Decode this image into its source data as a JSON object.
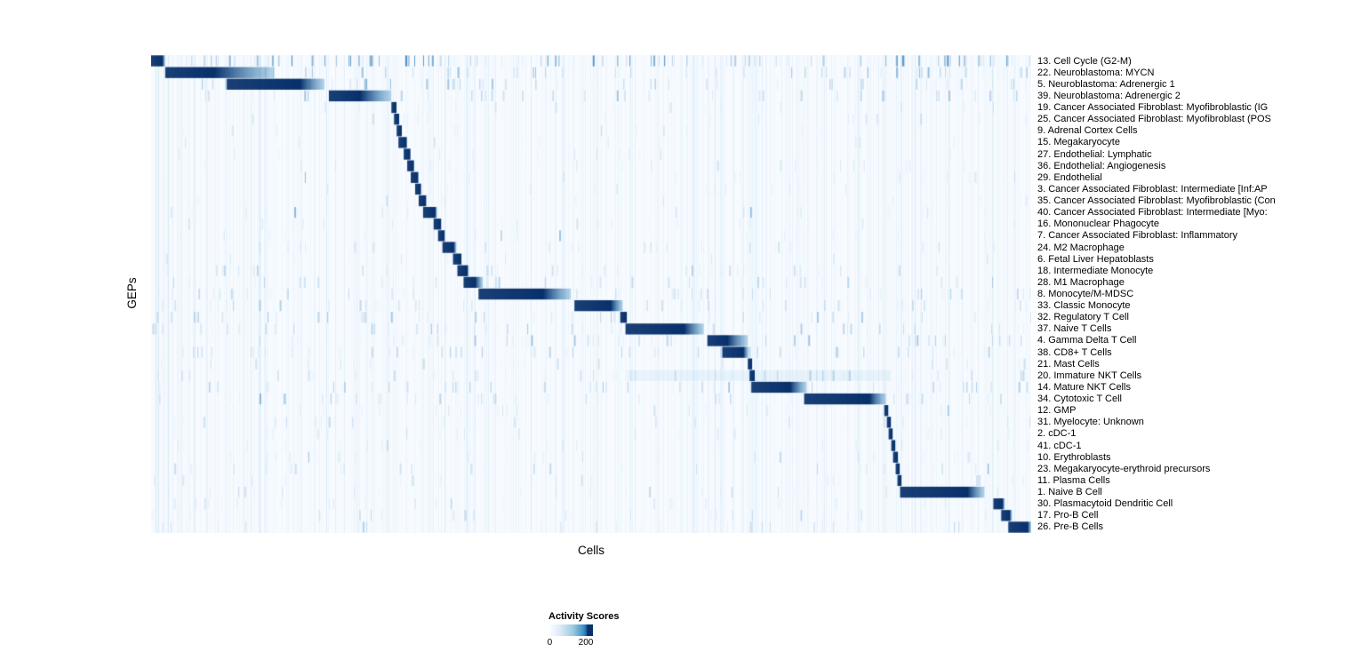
{
  "chart_data": {
    "type": "heatmap",
    "title": "",
    "xlabel": "Cells",
    "ylabel": "GEPs",
    "colormap": {
      "name": "Blues",
      "stops": [
        "#f7fbff",
        "#deebf7",
        "#9ecae1",
        "#4292c6",
        "#08306b"
      ],
      "low": "#f7fbff",
      "high": "#08306b"
    },
    "legend": {
      "title": "Activity Scores",
      "min": 0,
      "max": 200,
      "ticks": [
        "0",
        "200"
      ]
    },
    "notes": "Rows are GEPs, columns are cells ordered so each GEP's high-activity cells form a diagonal block. seg = [start,end] fraction of the x-axis covered by the dark high-activity block; fade = fraction of the block fading rightward; noise = relative density of scattered low-level activity.",
    "rows": [
      {
        "label": "13. Cell Cycle (G2-M)",
        "seg": [
          0.0,
          0.016
        ],
        "fade": 0.2,
        "noise": 0.55
      },
      {
        "label": "22. Neuroblastoma: MYCN",
        "seg": [
          0.016,
          0.14
        ],
        "fade": 0.55,
        "noise": 0.3
      },
      {
        "label": "5. Neuroblastoma: Adrenergic 1",
        "seg": [
          0.086,
          0.197
        ],
        "fade": 0.25,
        "noise": 0.3
      },
      {
        "label": "39. Neuroblastoma: Adrenergic 2",
        "seg": [
          0.202,
          0.273
        ],
        "fade": 0.5,
        "noise": 0.25
      },
      {
        "label": "19. Cancer Associated Fibroblast: Myofibroblastic (IG",
        "seg": [
          0.273,
          0.279
        ],
        "fade": 0.1,
        "noise": 0.1
      },
      {
        "label": "25. Cancer Associated Fibroblast: Myofibroblast (POS",
        "seg": [
          0.276,
          0.282
        ],
        "fade": 0.1,
        "noise": 0.1
      },
      {
        "label": "9. Adrenal Cortex Cells",
        "seg": [
          0.279,
          0.285
        ],
        "fade": 0.1,
        "noise": 0.1
      },
      {
        "label": "15. Megakaryocyte",
        "seg": [
          0.281,
          0.291
        ],
        "fade": 0.1,
        "noise": 0.1
      },
      {
        "label": "27. Endothelial: Lymphatic",
        "seg": [
          0.287,
          0.295
        ],
        "fade": 0.1,
        "noise": 0.1
      },
      {
        "label": "36. Endothelial: Angiogenesis",
        "seg": [
          0.291,
          0.299
        ],
        "fade": 0.1,
        "noise": 0.12
      },
      {
        "label": "29. Endothelial",
        "seg": [
          0.295,
          0.304
        ],
        "fade": 0.1,
        "noise": 0.1
      },
      {
        "label": "3. Cancer Associated Fibroblast: Intermediate [Inf:AP",
        "seg": [
          0.3,
          0.307
        ],
        "fade": 0.1,
        "noise": 0.1
      },
      {
        "label": "35. Cancer Associated Fibroblast: Myofibroblastic (Con",
        "seg": [
          0.304,
          0.313
        ],
        "fade": 0.1,
        "noise": 0.1
      },
      {
        "label": "40. Cancer Associated Fibroblast: Intermediate [Myo:",
        "seg": [
          0.309,
          0.325
        ],
        "fade": 0.15,
        "noise": 0.1
      },
      {
        "label": "16. Mononuclear Phagocyte",
        "seg": [
          0.321,
          0.33
        ],
        "fade": 0.1,
        "noise": 0.12
      },
      {
        "label": "7. Cancer Associated Fibroblast: Inflammatory",
        "seg": [
          0.326,
          0.334
        ],
        "fade": 0.1,
        "noise": 0.1
      },
      {
        "label": "24. M2 Macrophage",
        "seg": [
          0.331,
          0.347
        ],
        "fade": 0.2,
        "noise": 0.15
      },
      {
        "label": "6. Fetal Liver Hepatoblasts",
        "seg": [
          0.343,
          0.353
        ],
        "fade": 0.1,
        "noise": 0.1
      },
      {
        "label": "18. Intermediate Monocyte",
        "seg": [
          0.348,
          0.361
        ],
        "fade": 0.15,
        "noise": 0.18
      },
      {
        "label": "28. M1 Macrophage",
        "seg": [
          0.355,
          0.377
        ],
        "fade": 0.4,
        "noise": 0.2
      },
      {
        "label": "8. Monocyte/M-MDSC",
        "seg": [
          0.372,
          0.477
        ],
        "fade": 0.3,
        "noise": 0.25
      },
      {
        "label": "33. Classic Monocyte",
        "seg": [
          0.481,
          0.536
        ],
        "fade": 0.25,
        "noise": 0.2
      },
      {
        "label": "32. Regulatory T Cell",
        "seg": [
          0.533,
          0.541
        ],
        "fade": 0.1,
        "noise": 0.25
      },
      {
        "label": "37. Naive T Cells",
        "seg": [
          0.539,
          0.628
        ],
        "fade": 0.25,
        "noise": 0.25
      },
      {
        "label": "4. Gamma Delta T Cell",
        "seg": [
          0.632,
          0.678
        ],
        "fade": 0.5,
        "noise": 0.25
      },
      {
        "label": "38. CD8+ T Cells",
        "seg": [
          0.649,
          0.679
        ],
        "fade": 0.2,
        "noise": 0.25
      },
      {
        "label": "21. Mast Cells",
        "seg": [
          0.678,
          0.683
        ],
        "fade": 0.1,
        "noise": 0.15
      },
      {
        "label": "20. Immature NKT Cells",
        "seg": [
          0.68,
          0.686
        ],
        "fade": 0.1,
        "noise": 0.2,
        "band": [
          0.54,
          0.84,
          0.1
        ]
      },
      {
        "label": "14. Mature NKT Cells",
        "seg": [
          0.682,
          0.745
        ],
        "fade": 0.3,
        "noise": 0.25
      },
      {
        "label": "34. Cytotoxic T Cell",
        "seg": [
          0.742,
          0.835
        ],
        "fade": 0.2,
        "noise": 0.25
      },
      {
        "label": "12. GMP",
        "seg": [
          0.833,
          0.838
        ],
        "fade": 0.1,
        "noise": 0.12
      },
      {
        "label": "31. Myelocyte: Unknown",
        "seg": [
          0.836,
          0.841
        ],
        "fade": 0.1,
        "noise": 0.15
      },
      {
        "label": "2. cDC-1",
        "seg": [
          0.838,
          0.843
        ],
        "fade": 0.1,
        "noise": 0.12
      },
      {
        "label": "41. cDC-1",
        "seg": [
          0.841,
          0.846
        ],
        "fade": 0.1,
        "noise": 0.12
      },
      {
        "label": "10. Erythroblasts",
        "seg": [
          0.843,
          0.849
        ],
        "fade": 0.1,
        "noise": 0.15
      },
      {
        "label": "23. Megakaryocyte-erythroid precursors",
        "seg": [
          0.846,
          0.851
        ],
        "fade": 0.1,
        "noise": 0.15
      },
      {
        "label": "11. Plasma Cells",
        "seg": [
          0.848,
          0.853
        ],
        "fade": 0.1,
        "noise": 0.12
      },
      {
        "label": "1. Naive B Cell",
        "seg": [
          0.851,
          0.947
        ],
        "fade": 0.2,
        "noise": 0.15
      },
      {
        "label": "30. Plasmacytoid Dendritic Cell",
        "seg": [
          0.957,
          0.97
        ],
        "fade": 0.2,
        "noise": 0.15
      },
      {
        "label": "17. Pro-B Cell",
        "seg": [
          0.966,
          0.978
        ],
        "fade": 0.2,
        "noise": 0.15
      },
      {
        "label": "26. Pre-B Cells",
        "seg": [
          0.974,
          1.0
        ],
        "fade": 0.15,
        "noise": 0.18
      }
    ]
  }
}
